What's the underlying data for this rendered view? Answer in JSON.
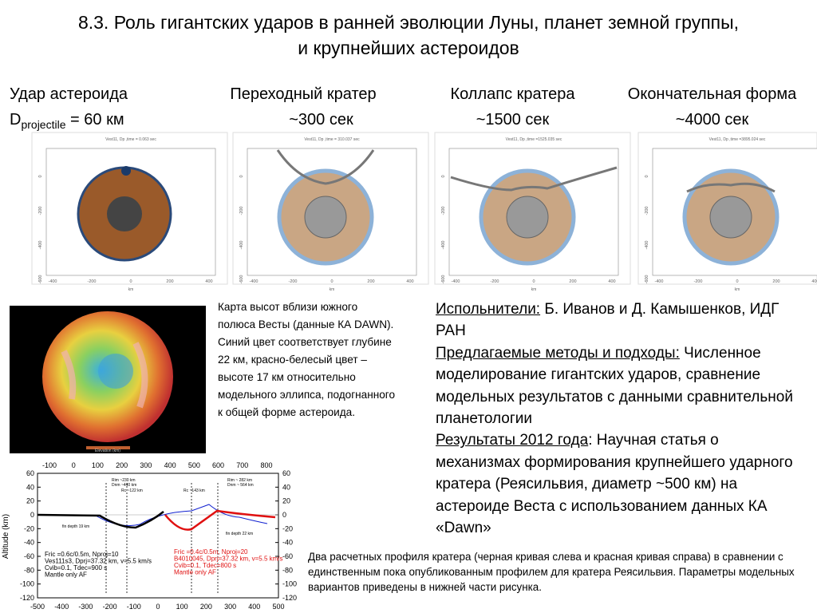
{
  "title": [
    "8.3. Роль гигантских ударов в ранней эволюции Луны, планет земной группы,",
    "и крупнейших астероидов"
  ],
  "stages": [
    {
      "heading": "Удар астероида",
      "sub": "D",
      "sub_index": "projectile",
      "sub_rest": " = 60 км",
      "plot_title": "Vest11, Dp ,time =    0.063 sec"
    },
    {
      "heading": "Переходный кратер",
      "sub": "~300 сек",
      "plot_title": "Vest11, Dp ,time =  310.037 sec"
    },
    {
      "heading": "Коллапс кратера",
      "sub": "~1500 сек",
      "plot_title": "Vest11, Dp ,time =1525.035 sec"
    },
    {
      "heading": "Окончательная форма",
      "sub": "~4000 сек",
      "plot_title": "Vest11, Dp ,time =3895.024 sec"
    }
  ],
  "plot_axes": {
    "xticks": [
      -400,
      -200,
      0,
      200,
      400
    ],
    "yticks": [
      0,
      -200,
      -400,
      -600
    ],
    "unit": "km"
  },
  "map_caption": "Карта высот вблизи южного полюса Весты (данные КА DAWN). Синий цвет соответствует глубине 22 км, красно-белесый цвет – высоте 17 км относительно модельного эллипса, подогнанного к общей форме астероида.",
  "map_legend": "Elevation (km)",
  "info": [
    {
      "label": "Испольнители:",
      "text": " Б. Иванов и Д. Камышенков, ИДГ РАН"
    },
    {
      "label": "Предлагаемые методы и подходы:",
      "text": " Численное моделирование гигантских ударов, сравнение модельных результатов с данными сравнительной планетологии"
    },
    {
      "label": "Результаты 2012 года",
      "text": ": Научная статья о механизмах формирования крупнейшего ударного кратера (Реясильвия, диаметр ~500 км) на астероиде Веста с использованием данных КА «Dawn»"
    }
  ],
  "profile": {
    "y_label": "Altitude (km)",
    "top_ticks": [
      -100,
      0,
      100,
      200,
      300,
      400,
      500,
      600,
      700,
      800
    ],
    "bottom_ticks": [
      -500,
      -400,
      -300,
      -200,
      -100,
      0,
      100,
      200,
      300,
      400,
      500
    ],
    "yticks": [
      60,
      40,
      20,
      0,
      -20,
      -40,
      -60,
      -80,
      -100,
      -120
    ],
    "notes": [
      "Rim ~230 km",
      "Dnm ~440 km",
      "Rc ~122 km",
      "Rc ~143 km",
      "Rim ~ 282 km",
      "Dnm ~ 564 km",
      "fin depth 19 km",
      "fin depth 22 km"
    ],
    "legend_left": [
      "Fric =0.6c/0.5m, Nproj=10",
      "Ves111s3, Dprj=37.32 km, v=5.5 km/s",
      "Cvib=0.1, Tdec=900 s",
      "Mantle only AF"
    ],
    "legend_right": [
      "Fric =0.4c/0.5m, Nproj=20",
      "B4010045, Dprj=37.32 km, v=5.5 km/s",
      "Cvib=0.1, Tdec=800 s",
      "Mantle only AF"
    ]
  },
  "profile_caption": "Два расчетных профиля кратера (черная кривая слева и красная кривая справа) в сравнении с единственным пока опубликованным профилем для кратера Реясильвия. Параметры модельных вариантов приведены в нижней части рисунка."
}
